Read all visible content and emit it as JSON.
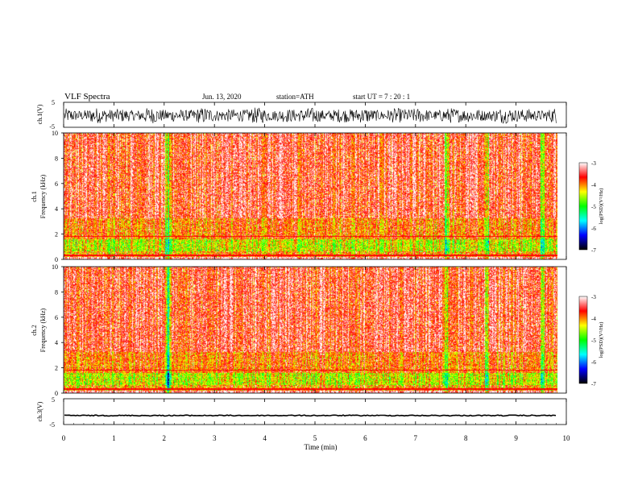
{
  "header": {
    "title": "VLF  Spectra",
    "date": "Jun. 13, 2020",
    "station": "station=ATH",
    "start": "start  UT  =    7  : 20 : 1"
  },
  "chart_data": [
    {
      "type": "line",
      "id": "ch1-waveform",
      "ylabel": "ch.1(V)",
      "ylim": [
        -5,
        5
      ],
      "yticks": [
        "5",
        "-5"
      ],
      "x": [
        0,
        9.8
      ],
      "amplitude_range": [
        -3.5,
        3.0
      ]
    },
    {
      "type": "heatmap",
      "id": "ch1-spectrogram",
      "ylabel": "ch.1",
      "ylabel2": "Frequency  (kHz)",
      "ylim": [
        0,
        10
      ],
      "yticks": [
        "0",
        "2",
        "4",
        "6",
        "8",
        "10"
      ],
      "xlim": [
        0,
        9.8
      ],
      "bright_columns_min": [
        2.05,
        2.1,
        7.6,
        8.4,
        9.5
      ]
    },
    {
      "type": "heatmap",
      "id": "ch2-spectrogram",
      "ylabel": "ch.2",
      "ylabel2": "Frequency  (kHz)",
      "ylim": [
        0,
        10
      ],
      "yticks": [
        "0",
        "2",
        "4",
        "6",
        "8",
        "10"
      ],
      "xlim": [
        0,
        9.8
      ],
      "bright_columns_min": [
        2.05,
        2.1,
        7.6,
        8.4,
        9.5
      ]
    },
    {
      "type": "line",
      "id": "ch3-waveform",
      "ylabel": "ch.3(V)",
      "ylim": [
        -5,
        5
      ],
      "yticks": [
        "5",
        "-5"
      ],
      "x": [
        0,
        9.8
      ],
      "y_level": -1.5
    }
  ],
  "xaxis": {
    "label": "Time  (min)",
    "ticks": [
      "0",
      "1",
      "2",
      "3",
      "4",
      "5",
      "6",
      "7",
      "8",
      "9",
      "10"
    ],
    "xlim": [
      0,
      10
    ]
  },
  "colorbar": {
    "label": "log(PSD)(V²/Hz)",
    "ticks": [
      "-3",
      "-4",
      "-5",
      "-6",
      "-7"
    ],
    "range": [
      -7,
      -3
    ],
    "colors": [
      "#000000",
      "#0000ff",
      "#00ffff",
      "#00ff00",
      "#ffff00",
      "#ff0000",
      "#ffffff"
    ]
  }
}
